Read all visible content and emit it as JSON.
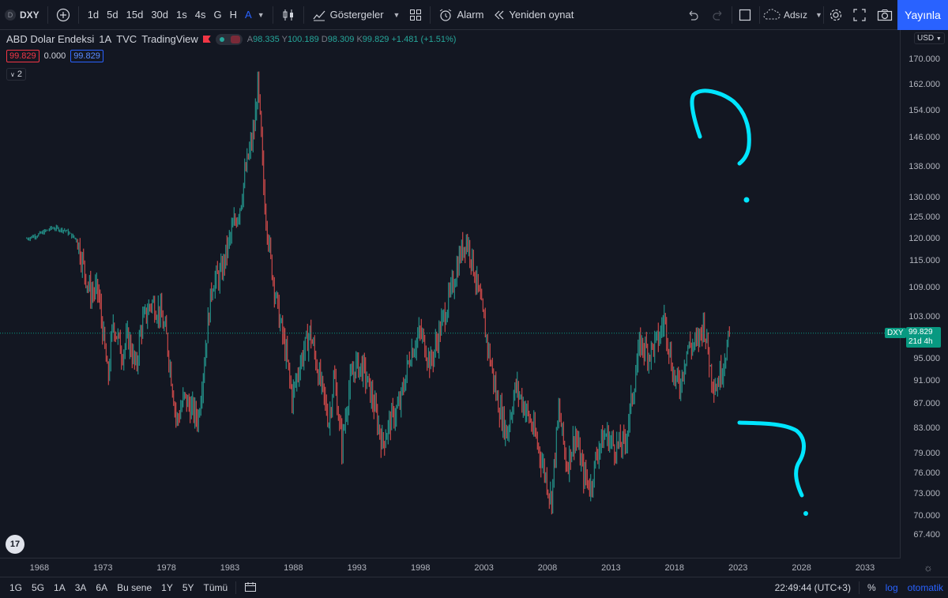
{
  "toolbar": {
    "symbol_icon_letter": "D",
    "symbol": "DXY",
    "timeframes": [
      "1d",
      "5d",
      "15d",
      "30d",
      "1s",
      "4s",
      "G",
      "H",
      "A"
    ],
    "active_timeframe": "A",
    "indicators_label": "Göstergeler",
    "alarm_label": "Alarm",
    "replay_label": "Yeniden oynat",
    "layout_name": "Adsız",
    "publish_label": "Yayınla"
  },
  "legend": {
    "title": "ABD Dolar Endeksi",
    "interval": "1A",
    "source": "TVC",
    "platform": "TradingView",
    "ohlc": {
      "open_label": "A",
      "open": "98.335",
      "high_label": "Y",
      "high": "100.189",
      "low_label": "D",
      "low": "98.309",
      "close_label": "K",
      "close": "99.829",
      "change": "+1.481 (+1.51%)"
    },
    "bid": "99.829",
    "spread": "0.000",
    "ask": "99.829",
    "collapse_count": "2"
  },
  "price_axis": {
    "currency": "USD",
    "ticks": [
      "170.000",
      "162.000",
      "154.000",
      "146.000",
      "138.000",
      "130.000",
      "125.000",
      "120.000",
      "115.000",
      "109.000",
      "103.000",
      "95.000",
      "91.000",
      "87.000",
      "83.000",
      "79.000",
      "76.000",
      "73.000",
      "70.000",
      "67.400"
    ],
    "scale": "log",
    "range": [
      64.5,
      180
    ],
    "current_price": "99.829",
    "countdown": "21d 4h",
    "symbol_tag": "DXY"
  },
  "time_axis": {
    "ticks": [
      "1968",
      "1973",
      "1978",
      "1983",
      "1988",
      "1993",
      "1998",
      "2003",
      "2008",
      "2013",
      "2018",
      "2023",
      "2028",
      "2033"
    ]
  },
  "bottom_bar": {
    "ranges": [
      "1G",
      "5G",
      "1A",
      "3A",
      "6A",
      "Bu sene",
      "1Y",
      "5Y",
      "Tümü"
    ],
    "clock": "22:49:44 (UTC+3)",
    "percent_label": "%",
    "log_label": "log",
    "auto_label": "otomatik"
  },
  "chart_data": {
    "type": "candlestick",
    "title": "ABD Dolar Endeksi · 1A · TVC",
    "scale": "log",
    "ylim": [
      64.5,
      180
    ],
    "xlim": [
      1964.9,
      2035.8
    ],
    "series": [
      {
        "name": "DXY",
        "points": [
          [
            1967.0,
            120.0
          ],
          [
            1968.0,
            121.0
          ],
          [
            1969.0,
            122.5
          ],
          [
            1970.0,
            122.0
          ],
          [
            1971.0,
            119.5
          ],
          [
            1971.7,
            111.0
          ],
          [
            1972.0,
            108.0
          ],
          [
            1972.6,
            108.5
          ],
          [
            1973.0,
            100.0
          ],
          [
            1973.4,
            91.0
          ],
          [
            1973.8,
            102.0
          ],
          [
            1974.5,
            96.0
          ],
          [
            1975.0,
            99.0
          ],
          [
            1975.6,
            93.0
          ],
          [
            1976.0,
            101.0
          ],
          [
            1976.8,
            106.0
          ],
          [
            1977.5,
            104.0
          ],
          [
            1978.0,
            99.0
          ],
          [
            1978.8,
            84.0
          ],
          [
            1979.4,
            88.0
          ],
          [
            1980.0,
            86.0
          ],
          [
            1980.5,
            84.5
          ],
          [
            1981.0,
            95.0
          ],
          [
            1981.6,
            110.0
          ],
          [
            1982.3,
            112.0
          ],
          [
            1983.0,
            120.0
          ],
          [
            1983.8,
            128.0
          ],
          [
            1984.3,
            138.0
          ],
          [
            1984.9,
            148.0
          ],
          [
            1985.2,
            162.0
          ],
          [
            1985.7,
            130.0
          ],
          [
            1986.2,
            115.0
          ],
          [
            1986.8,
            104.0
          ],
          [
            1987.4,
            96.0
          ],
          [
            1987.9,
            88.0
          ],
          [
            1988.5,
            94.0
          ],
          [
            1989.3,
            100.0
          ],
          [
            1990.0,
            92.0
          ],
          [
            1990.8,
            84.0
          ],
          [
            1991.2,
            92.0
          ],
          [
            1991.8,
            80.0
          ],
          [
            1992.4,
            90.0
          ],
          [
            1992.9,
            94.0
          ],
          [
            1993.5,
            93.0
          ],
          [
            1994.2,
            88.0
          ],
          [
            1995.0,
            80.5
          ],
          [
            1995.6,
            84.0
          ],
          [
            1996.4,
            87.0
          ],
          [
            1997.2,
            96.0
          ],
          [
            1998.0,
            100.0
          ],
          [
            1998.8,
            94.0
          ],
          [
            1999.6,
            101.0
          ],
          [
            2000.4,
            108.0
          ],
          [
            2001.1,
            116.0
          ],
          [
            2001.6,
            120.0
          ],
          [
            2002.0,
            116.0
          ],
          [
            2002.7,
            106.0
          ],
          [
            2003.4,
            96.0
          ],
          [
            2004.0,
            88.0
          ],
          [
            2004.8,
            82.0
          ],
          [
            2005.5,
            90.0
          ],
          [
            2006.3,
            86.0
          ],
          [
            2007.0,
            82.0
          ],
          [
            2007.8,
            76.0
          ],
          [
            2008.3,
            72.0
          ],
          [
            2008.9,
            86.0
          ],
          [
            2009.5,
            77.0
          ],
          [
            2010.2,
            82.0
          ],
          [
            2010.8,
            76.0
          ],
          [
            2011.4,
            74.0
          ],
          [
            2012.0,
            80.0
          ],
          [
            2012.6,
            82.0
          ],
          [
            2013.3,
            80.0
          ],
          [
            2014.1,
            80.5
          ],
          [
            2014.8,
            90.0
          ],
          [
            2015.3,
            98.0
          ],
          [
            2016.0,
            96.0
          ],
          [
            2016.8,
            99.0
          ],
          [
            2017.2,
            103.0
          ],
          [
            2017.9,
            92.0
          ],
          [
            2018.4,
            90.0
          ],
          [
            2019.0,
            97.0
          ],
          [
            2019.8,
            98.0
          ],
          [
            2020.3,
            102.0
          ],
          [
            2020.9,
            92.0
          ],
          [
            2021.3,
            90.0
          ],
          [
            2021.8,
            94.0
          ],
          [
            2022.4,
            99.829
          ]
        ]
      }
    ]
  }
}
